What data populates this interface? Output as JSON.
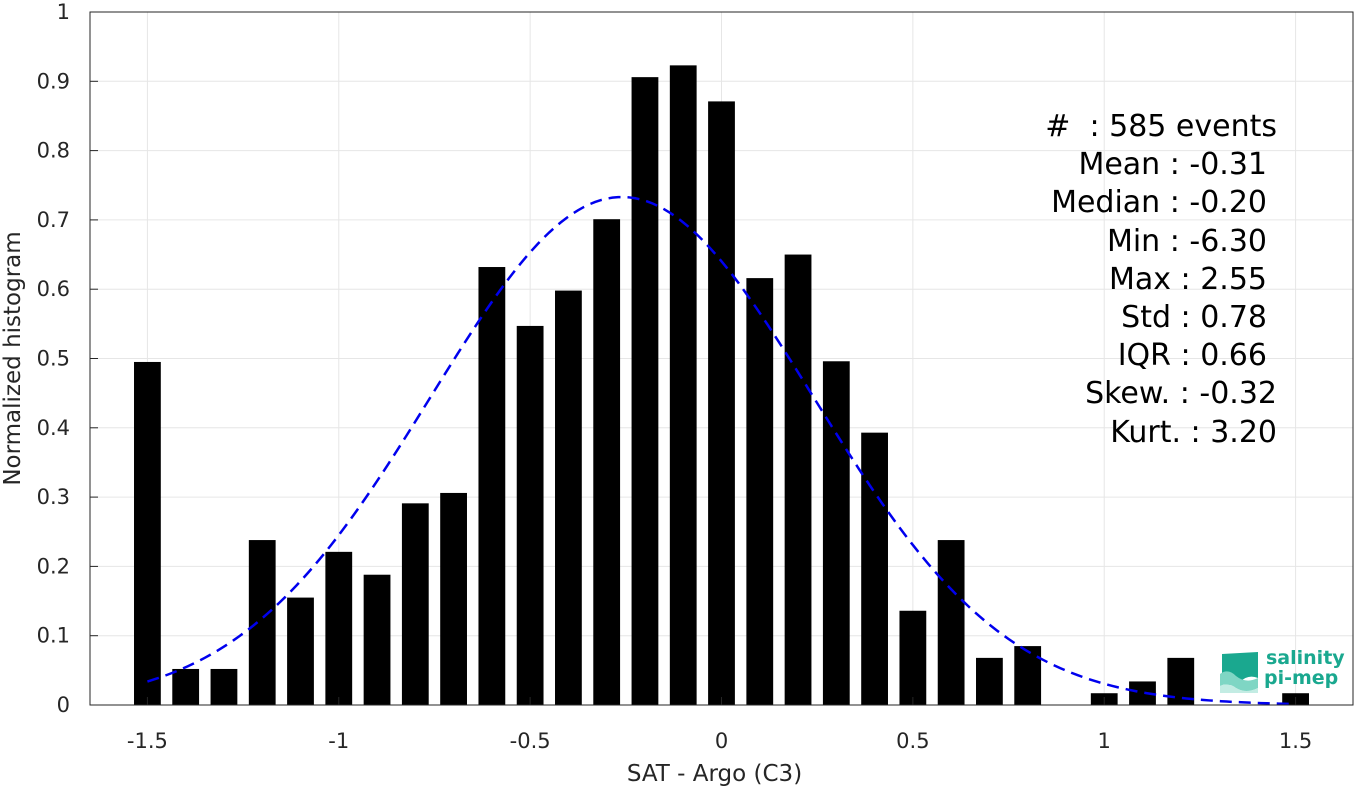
{
  "chart_data": {
    "type": "bar",
    "xlabel": "SAT - Argo (C3)",
    "ylabel": "Normalized histogram",
    "xlim": [
      -1.65,
      1.65
    ],
    "ylim": [
      0,
      1
    ],
    "grid": true,
    "x_ticks": [
      "-1.5",
      "-1",
      "-0.5",
      "0",
      "0.5",
      "1",
      "1.5"
    ],
    "x_tick_values": [
      -1.5,
      -1,
      -0.5,
      0,
      0.5,
      1,
      1.5
    ],
    "y_ticks": [
      "0",
      "0.1",
      "0.2",
      "0.3",
      "0.4",
      "0.5",
      "0.6",
      "0.7",
      "0.8",
      "0.9",
      "1"
    ],
    "y_tick_values": [
      0,
      0.1,
      0.2,
      0.3,
      0.4,
      0.5,
      0.6,
      0.7,
      0.8,
      0.9,
      1
    ],
    "bar_width": 0.07,
    "bar_color": "#000000",
    "bars": {
      "x": [
        -1.5,
        -1.4,
        -1.3,
        -1.2,
        -1.1,
        -1.0,
        -0.9,
        -0.8,
        -0.7,
        -0.6,
        -0.5,
        -0.4,
        -0.3,
        -0.2,
        -0.1,
        0.0,
        0.1,
        0.2,
        0.3,
        0.4,
        0.5,
        0.6,
        0.7,
        0.8,
        0.9,
        1.0,
        1.1,
        1.2,
        1.3,
        1.4,
        1.5
      ],
      "values": [
        0.495,
        0.052,
        0.052,
        0.238,
        0.155,
        0.221,
        0.188,
        0.291,
        0.306,
        0.632,
        0.547,
        0.598,
        0.701,
        0.906,
        0.923,
        0.871,
        0.616,
        0.65,
        0.496,
        0.393,
        0.136,
        0.238,
        0.068,
        0.085,
        0.0,
        0.017,
        0.034,
        0.068,
        0.0,
        0.0,
        0.017
      ]
    },
    "fit_curve": {
      "style": "dashed",
      "color": "#0000ee",
      "mean": -0.26,
      "std": 0.5,
      "peak": 0.733,
      "x_range": [
        -1.5,
        1.5
      ]
    },
    "stats_lines": [
      "#  : 585 events",
      "Mean : -0.31",
      "Median : -0.20",
      "Min : -6.30",
      "Max : 2.55",
      "Std : 0.78",
      "IQR : 0.66",
      "Skew. : -0.32",
      "Kurt. : 3.20"
    ]
  },
  "logo": {
    "line1": "salinity",
    "line2": "pi-mep",
    "color": "#1aa88f"
  }
}
